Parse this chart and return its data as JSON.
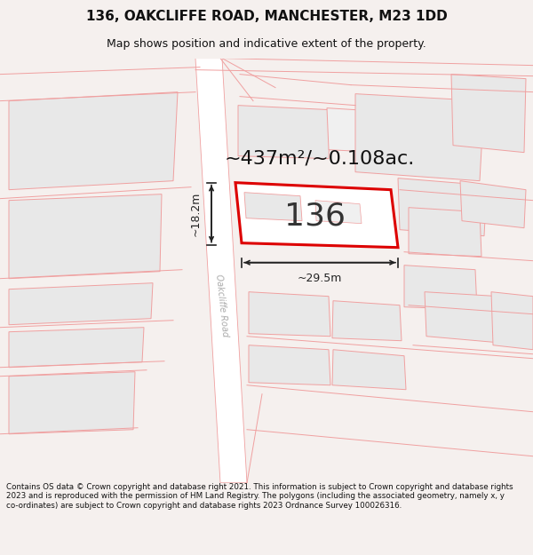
{
  "title_line1": "136, OAKCLIFFE ROAD, MANCHESTER, M23 1DD",
  "title_line2": "Map shows position and indicative extent of the property.",
  "area_text": "~437m²/~0.108ac.",
  "number_text": "136",
  "road_label": "Oakcliffe Road",
  "dim_width": "~29.5m",
  "dim_height": "~18.2m",
  "footer_text": "Contains OS data © Crown copyright and database right 2021. This information is subject to Crown copyright and database rights 2023 and is reproduced with the permission of HM Land Registry. The polygons (including the associated geometry, namely x, y co-ordinates) are subject to Crown copyright and database rights 2023 Ordnance Survey 100026316.",
  "bg_color": "#f5f0ee",
  "map_bg": "#ffffff",
  "parcel_fill": "#e8e8e8",
  "parcel_edge": "#f0a0a0",
  "main_plot_fill": "#ffffff",
  "main_plot_edge": "#dd0000",
  "road_fill": "#ffffff",
  "road_edge": "#f0a0a0",
  "dim_line_color": "#222222",
  "area_text_color": "#111111",
  "number_color": "#333333",
  "road_label_color": "#aaaaaa",
  "title_color": "#111111",
  "footer_color": "#111111",
  "title_fontsize": 11,
  "subtitle_fontsize": 9,
  "area_fontsize": 16,
  "number_fontsize": 26,
  "dim_fontsize": 9,
  "road_fontsize": 7,
  "footer_fontsize": 6.3
}
